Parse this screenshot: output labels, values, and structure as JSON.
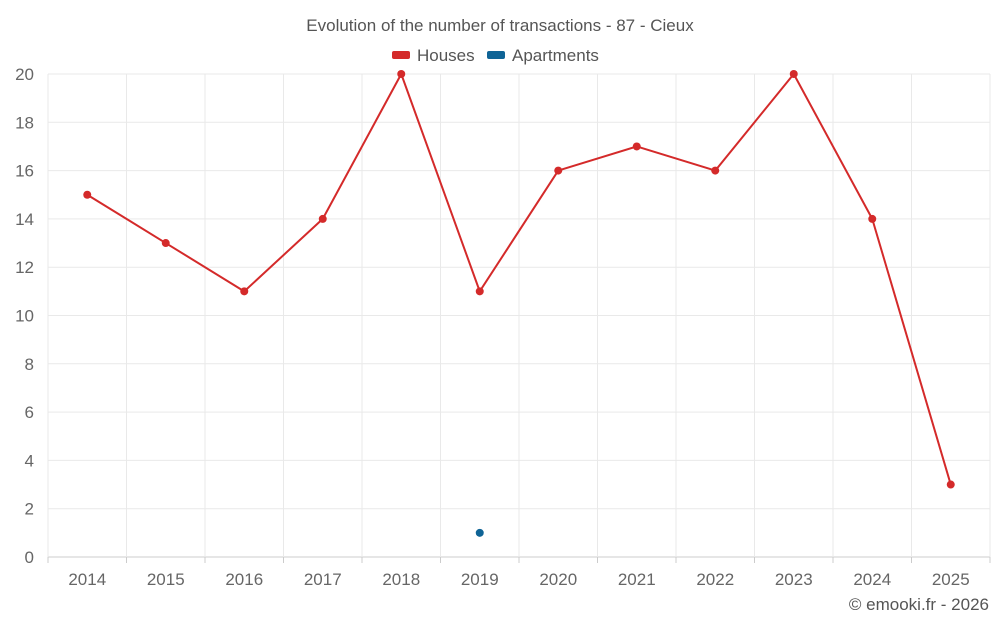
{
  "chart_data": {
    "type": "line",
    "title": "Evolution of the number of transactions - 87 - Cieux",
    "categories": [
      "2014",
      "2015",
      "2016",
      "2017",
      "2018",
      "2019",
      "2020",
      "2021",
      "2022",
      "2023",
      "2024",
      "2025"
    ],
    "series": [
      {
        "name": "Houses",
        "color": "#d42a2a",
        "values": [
          15,
          13,
          11,
          14,
          20,
          11,
          16,
          17,
          16,
          20,
          14,
          3
        ]
      },
      {
        "name": "Apartments",
        "color": "#0f6496",
        "values": [
          null,
          null,
          null,
          null,
          null,
          1,
          null,
          null,
          null,
          null,
          null,
          null
        ]
      }
    ],
    "yticks": [
      0,
      2,
      4,
      6,
      8,
      10,
      12,
      14,
      16,
      18,
      20
    ],
    "ylim": [
      0,
      20
    ],
    "grid": true,
    "legend_position": "top-center",
    "xlabel": "",
    "ylabel": ""
  },
  "credit": "© emooki.fr - 2026"
}
